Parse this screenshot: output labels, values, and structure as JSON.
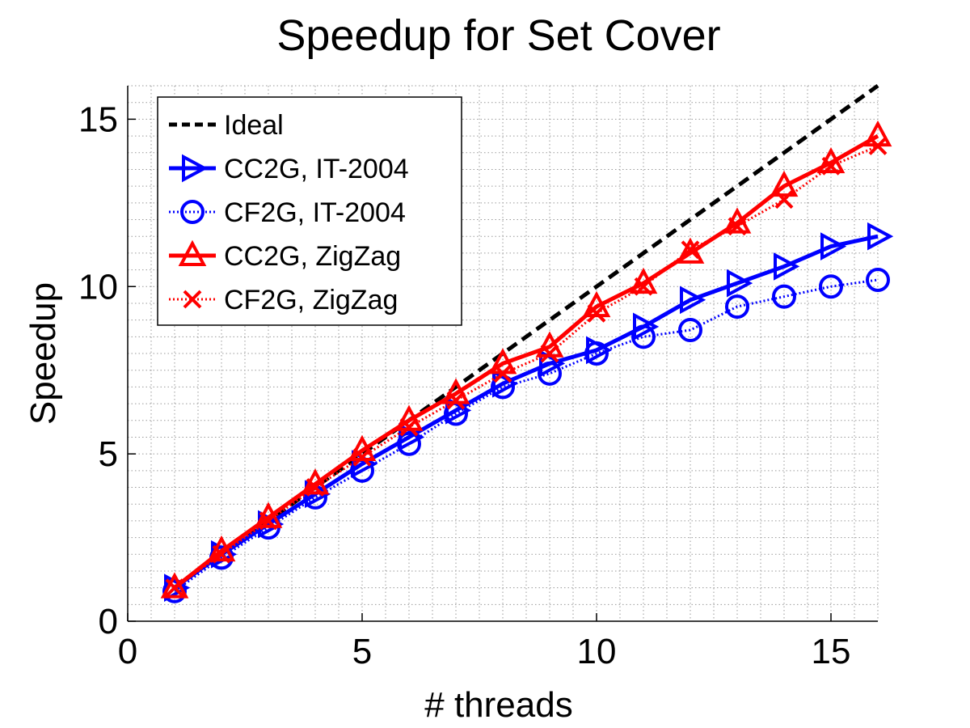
{
  "chart_data": {
    "type": "line",
    "title": "Speedup for Set Cover",
    "xlabel": "# threads",
    "ylabel": "Speedup",
    "xlim": [
      0,
      16
    ],
    "ylim": [
      0,
      16
    ],
    "xticks": [
      0,
      5,
      10,
      15
    ],
    "yticks": [
      0,
      5,
      10,
      15
    ],
    "grid": "minor-dotted",
    "legend_position": "top-left",
    "x": [
      1,
      2,
      3,
      4,
      5,
      6,
      7,
      8,
      9,
      10,
      11,
      12,
      13,
      14,
      15,
      16
    ],
    "series": [
      {
        "name": "Ideal",
        "color": "#000000",
        "line_style": "dashed",
        "marker": "none",
        "values": [
          1,
          2,
          3,
          4,
          5,
          6,
          7,
          8,
          9,
          10,
          11,
          12,
          13,
          14,
          15,
          16
        ]
      },
      {
        "name": "CC2G, IT-2004",
        "color": "#0000ff",
        "line_style": "solid",
        "marker": "triangle-right",
        "values": [
          1.0,
          2.0,
          2.9,
          3.8,
          4.7,
          5.5,
          6.3,
          7.1,
          7.7,
          8.1,
          8.8,
          9.6,
          10.1,
          10.6,
          11.2,
          11.5
        ]
      },
      {
        "name": "CF2G, IT-2004",
        "color": "#0000ff",
        "line_style": "dotted",
        "marker": "circle",
        "values": [
          0.9,
          1.9,
          2.8,
          3.7,
          4.5,
          5.3,
          6.2,
          7.0,
          7.4,
          8.0,
          8.5,
          8.7,
          9.4,
          9.7,
          10.0,
          10.2
        ]
      },
      {
        "name": "CC2G, ZigZag",
        "color": "#ff0000",
        "line_style": "solid",
        "marker": "triangle-up",
        "values": [
          1.0,
          2.1,
          3.1,
          4.1,
          5.1,
          6.0,
          6.8,
          7.7,
          8.2,
          9.4,
          10.1,
          11.0,
          11.9,
          13.0,
          13.7,
          14.5
        ]
      },
      {
        "name": "CF2G, ZigZag",
        "color": "#ff0000",
        "line_style": "dotted",
        "marker": "x",
        "values": [
          1.0,
          2.0,
          3.0,
          4.0,
          4.9,
          5.8,
          6.6,
          7.4,
          8.0,
          9.2,
          10.0,
          11.1,
          11.8,
          12.6,
          13.6,
          14.2
        ]
      }
    ]
  }
}
